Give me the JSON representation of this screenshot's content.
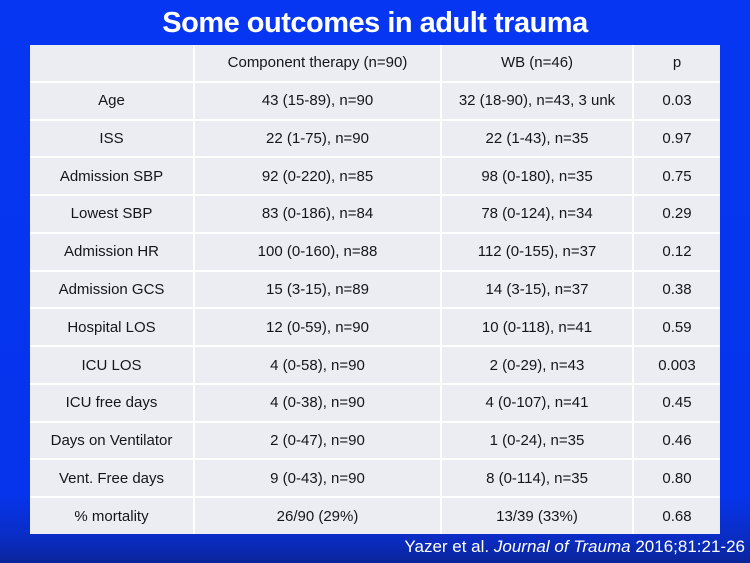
{
  "title": "Some outcomes in adult trauma",
  "table": {
    "columns": [
      "",
      "Component therapy (n=90)",
      "WB (n=46)",
      "p"
    ],
    "rows": [
      {
        "label": "Age",
        "component": "43 (15-89), n=90",
        "wb": "32 (18-90), n=43, 3 unk",
        "p": "0.03"
      },
      {
        "label": "ISS",
        "component": "22 (1-75), n=90",
        "wb": "22 (1-43), n=35",
        "p": "0.97"
      },
      {
        "label": "Admission SBP",
        "component": "92 (0-220), n=85",
        "wb": "98 (0-180), n=35",
        "p": "0.75"
      },
      {
        "label": "Lowest SBP",
        "component": "83 (0-186), n=84",
        "wb": "78 (0-124), n=34",
        "p": "0.29"
      },
      {
        "label": "Admission HR",
        "component": "100 (0-160), n=88",
        "wb": "112 (0-155), n=37",
        "p": "0.12"
      },
      {
        "label": "Admission GCS",
        "component": "15 (3-15), n=89",
        "wb": "14 (3-15), n=37",
        "p": "0.38"
      },
      {
        "label": "Hospital LOS",
        "component": "12 (0-59), n=90",
        "wb": "10 (0-118), n=41",
        "p": "0.59"
      },
      {
        "label": "ICU LOS",
        "component": "4 (0-58), n=90",
        "wb": "2 (0-29), n=43",
        "p": "0.003"
      },
      {
        "label": "ICU free days",
        "component": "4 (0-38), n=90",
        "wb": "4 (0-107), n=41",
        "p": "0.45"
      },
      {
        "label": "Days on Ventilator",
        "component": "2 (0-47), n=90",
        "wb": "1 (0-24), n=35",
        "p": "0.46"
      },
      {
        "label": "Vent. Free days",
        "component": "9 (0-43), n=90",
        "wb": "8 (0-114), n=35",
        "p": "0.80"
      },
      {
        "label": "% mortality",
        "component": "26/90 (29%)",
        "wb": "13/39 (33%)",
        "p": "0.68"
      }
    ]
  },
  "footer": {
    "authors": "Yazer et al.",
    "journal": "Journal of Trauma",
    "citation": "2016;81:21-26"
  },
  "colors": {
    "background_blue": "#0634EC",
    "table_background": "#ECEDF2",
    "gridline": "#FFFFFF",
    "title_text": "#FFFFFF",
    "table_text": "#16161A"
  }
}
